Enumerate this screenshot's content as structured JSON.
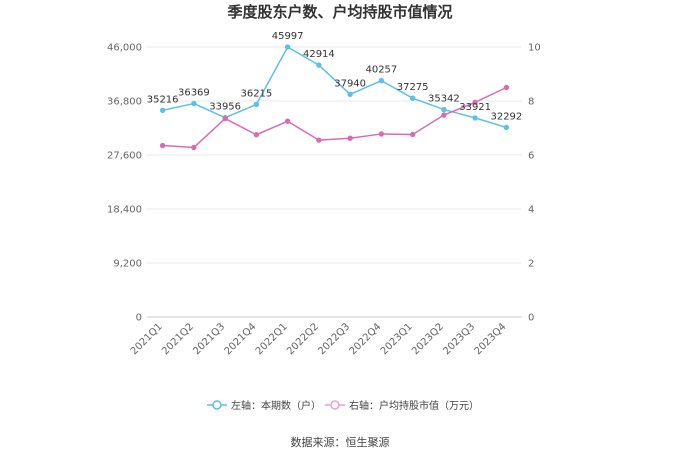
{
  "chart_data": {
    "type": "line",
    "title": "季度股东户数、户均持股市值情况",
    "categories": [
      "2021Q1",
      "2021Q2",
      "2021Q3",
      "2021Q4",
      "2022Q1",
      "2022Q2",
      "2022Q3",
      "2022Q4",
      "2023Q1",
      "2023Q2",
      "2023Q3",
      "2023Q4"
    ],
    "left_axis": {
      "min": 0,
      "max": 46000,
      "ticks": [
        0,
        9200,
        18400,
        27600,
        36800,
        46000
      ],
      "tick_labels": [
        "0",
        "9,200",
        "18,400",
        "27,600",
        "36,800",
        "46,000"
      ]
    },
    "right_axis": {
      "min": 0,
      "max": 10,
      "ticks": [
        0,
        2,
        4,
        6,
        8,
        10
      ],
      "tick_labels": [
        "0",
        "2",
        "4",
        "6",
        "8",
        "10"
      ]
    },
    "series": [
      {
        "name": "左轴：本期数（户）",
        "axis": "left",
        "color": "#5bc0eb",
        "values": [
          35216,
          36369,
          33956,
          36215,
          45997,
          42914,
          37940,
          40257,
          37275,
          35342,
          33921,
          32292
        ],
        "labels": [
          "35216",
          "36369",
          "33956",
          "36215",
          "45997",
          "42914",
          "37940",
          "40257",
          "37275",
          "35342",
          "33921",
          "32292"
        ]
      },
      {
        "name": "右轴：户均持股市值（万元）",
        "axis": "right",
        "color": "#d96bb5",
        "values": [
          6.35,
          6.28,
          7.35,
          6.75,
          7.25,
          6.55,
          6.62,
          6.78,
          6.76,
          7.48,
          7.95,
          8.5
        ]
      }
    ],
    "legend_position": "bottom",
    "grid": true
  },
  "footer": {
    "source": "数据来源：恒生聚源"
  }
}
